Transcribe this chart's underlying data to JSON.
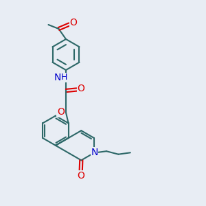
{
  "bg_color": "#e8edf4",
  "bond_color": "#2d6868",
  "O_color": "#dd0000",
  "N_color": "#0000cc",
  "bond_width": 1.5,
  "font_size": 8.5,
  "figsize": [
    3.0,
    3.0
  ],
  "dpi": 100,
  "xlim": [
    0,
    10
  ],
  "ylim": [
    0,
    10
  ]
}
